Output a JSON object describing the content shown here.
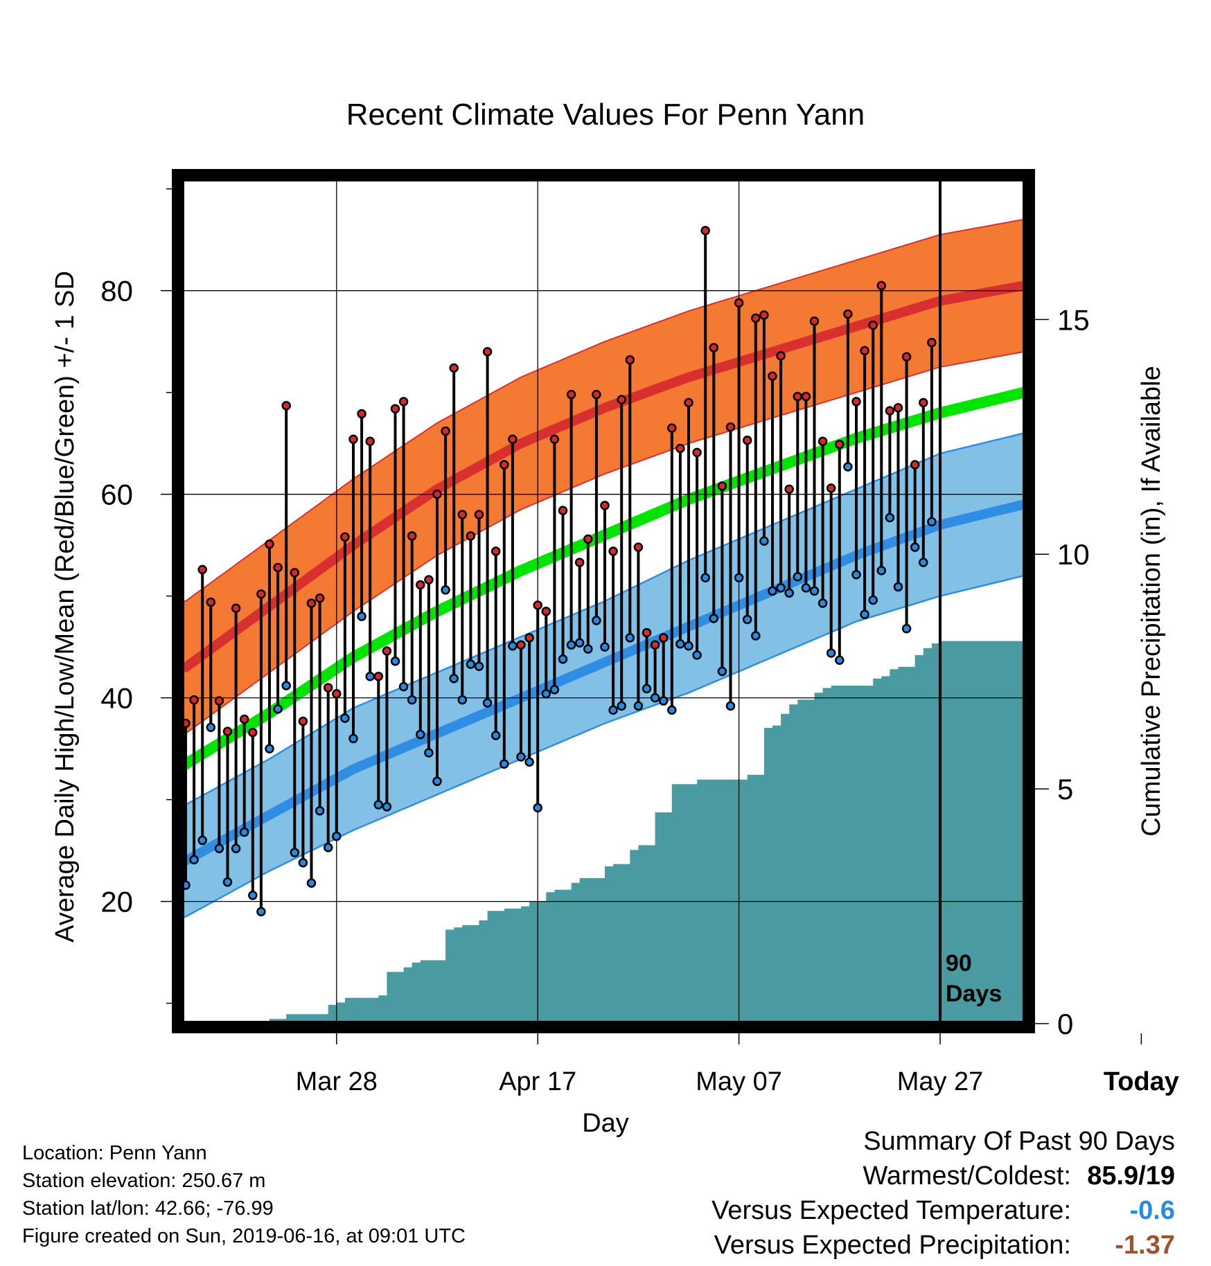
{
  "chart_data": {
    "type": "line",
    "title": "Recent Climate Values For Penn Yann",
    "xlabel": "Day",
    "ylabel": "Average Daily High/Low/Mean (Red/Blue/Green) +/- 1 SD",
    "y2label": "Cumulative Precipitation (in), If Available",
    "x_ticks": [
      "Mar 28",
      "Apr 17",
      "May 07",
      "May 27",
      "Today"
    ],
    "ylim": [
      8,
      91
    ],
    "y_ticks": [
      20,
      40,
      60,
      80
    ],
    "y2lim": [
      0,
      18
    ],
    "y2_ticks": [
      0,
      5,
      10,
      15
    ],
    "grid": true,
    "today_marker_label": "90\nDays",
    "normals": {
      "day_index": [
        0,
        10,
        20,
        30,
        40,
        50,
        60,
        70,
        80,
        90,
        100
      ],
      "high_mean": [
        43,
        49,
        55,
        60.5,
        65,
        68.5,
        71.5,
        74,
        76.5,
        79,
        80.5
      ],
      "high_sd": [
        6.5,
        6.5,
        6.5,
        6.5,
        6.5,
        6.5,
        6.5,
        6.5,
        6.5,
        6.5,
        6.5
      ],
      "low_mean": [
        24,
        28.5,
        33,
        36.5,
        40,
        43.5,
        47,
        50.5,
        54,
        57,
        59
      ],
      "low_sd": [
        5.5,
        5.5,
        6,
        6,
        6,
        6,
        6.5,
        6.5,
        6.5,
        7,
        7
      ],
      "mean": [
        33.5,
        38.5,
        44,
        48.5,
        52.5,
        56,
        59.5,
        62.5,
        65.5,
        68,
        70
      ]
    },
    "series": [
      {
        "name": "High",
        "values": [
          37.5,
          39.8,
          52.6,
          49.4,
          39.7,
          36.7,
          48.8,
          37.9,
          36.6,
          50.2,
          55.1,
          52.8,
          68.7,
          52.3,
          37.7,
          49.3,
          49.8,
          41.0,
          40.4,
          55.8,
          65.4,
          67.9,
          65.2,
          42.1,
          44.6,
          68.4,
          69.1,
          55.9,
          51.1,
          51.6,
          60.0,
          66.2,
          72.4,
          58.0,
          55.9,
          58.0,
          74.0,
          54.4,
          62.9,
          65.4,
          45.2,
          45.9,
          49.1,
          48.5,
          65.4,
          58.4,
          69.8,
          53.3,
          55.6,
          69.8,
          58.9,
          54.4,
          69.3,
          73.2,
          54.8,
          46.4,
          45.2,
          45.9,
          66.5,
          64.5,
          69.0,
          64.1,
          85.9,
          74.4,
          60.8,
          66.6,
          78.8,
          65.3,
          77.3,
          77.6,
          71.6,
          73.6,
          60.5,
          69.6,
          69.6,
          77.0,
          65.2,
          60.6,
          64.9,
          77.7,
          69.1,
          74.1,
          76.6,
          80.5,
          68.2,
          68.5,
          73.5,
          62.9,
          69.0,
          74.9
        ]
      },
      {
        "name": "Low",
        "values": [
          21.6,
          24.1,
          26.0,
          37.1,
          25.2,
          21.9,
          25.2,
          26.8,
          20.6,
          19.0,
          35.0,
          38.9,
          41.2,
          24.8,
          23.8,
          21.8,
          28.9,
          25.3,
          26.4,
          38.0,
          36.0,
          48.0,
          42.1,
          29.5,
          29.3,
          43.6,
          41.1,
          39.8,
          36.4,
          34.6,
          31.8,
          50.6,
          41.9,
          39.8,
          43.3,
          43.1,
          39.5,
          36.3,
          33.5,
          45.1,
          34.2,
          33.7,
          29.2,
          40.4,
          40.8,
          43.8,
          45.2,
          45.4,
          44.8,
          47.6,
          45.0,
          38.8,
          39.2,
          45.9,
          39.2,
          40.9,
          40.0,
          39.7,
          38.8,
          45.3,
          45.1,
          44.2,
          51.8,
          47.8,
          42.6,
          39.2,
          51.8,
          47.7,
          46.1,
          55.4,
          50.5,
          50.8,
          50.3,
          51.9,
          50.8,
          50.5,
          49.3,
          44.4,
          43.7,
          62.7,
          52.1,
          48.2,
          49.6,
          52.5,
          57.7,
          50.9,
          46.8,
          54.8,
          53.3,
          57.3
        ]
      }
    ],
    "precip_cumulative": {
      "days": [
        0,
        5,
        10,
        12,
        17,
        18,
        19,
        23,
        24,
        26,
        27,
        28,
        31,
        32,
        33,
        35,
        36,
        38,
        40,
        41,
        43,
        44,
        46,
        47,
        50,
        51,
        53,
        54,
        56,
        57,
        58,
        59,
        61,
        62,
        63,
        67,
        68,
        69,
        70,
        71,
        72,
        73,
        75,
        76,
        77,
        78,
        82,
        83,
        84,
        85,
        87,
        88,
        89,
        90,
        99
      ],
      "values": [
        0,
        0,
        0.1,
        0.2,
        0.4,
        0.45,
        0.55,
        0.6,
        1.1,
        1.2,
        1.3,
        1.35,
        2.0,
        2.05,
        2.1,
        2.2,
        2.4,
        2.45,
        2.5,
        2.6,
        2.8,
        2.85,
        3.0,
        3.1,
        3.35,
        3.4,
        3.7,
        3.8,
        4.5,
        4.5,
        5.1,
        5.1,
        5.2,
        5.2,
        5.2,
        5.3,
        5.3,
        6.3,
        6.35,
        6.6,
        6.8,
        6.9,
        7.05,
        7.15,
        7.2,
        7.2,
        7.35,
        7.4,
        7.55,
        7.6,
        7.85,
        8.0,
        8.1,
        8.15,
        8.15
      ]
    }
  },
  "footer": {
    "location": "Location: Penn Yann",
    "elevation": "Station elevation: 250.67 m",
    "latlon": "Station lat/lon: 42.66; -76.99",
    "created": "Figure created on Sun, 2019-06-16, at 09:01 UTC"
  },
  "summary": {
    "title": "Summary Of Past 90 Days",
    "warm_cold_label": "Warmest/Coldest:",
    "warm_cold_value": "85.9/19",
    "temp_label": "Versus Expected Temperature:",
    "temp_value": "-0.6",
    "precip_label": "Versus Expected Precipitation:",
    "precip_value": "-1.37"
  },
  "colors": {
    "high_band": "#f47a33",
    "high_line": "#d8302e",
    "low_band": "#82c0e6",
    "low_line": "#2f8de4",
    "mean_line": "#00e400",
    "precip": "#4a9aa1",
    "high_dot": "#d42a2a",
    "low_dot": "#2a8ae0",
    "temp_value": "#2a8ae0",
    "precip_value": "#a0522d"
  }
}
